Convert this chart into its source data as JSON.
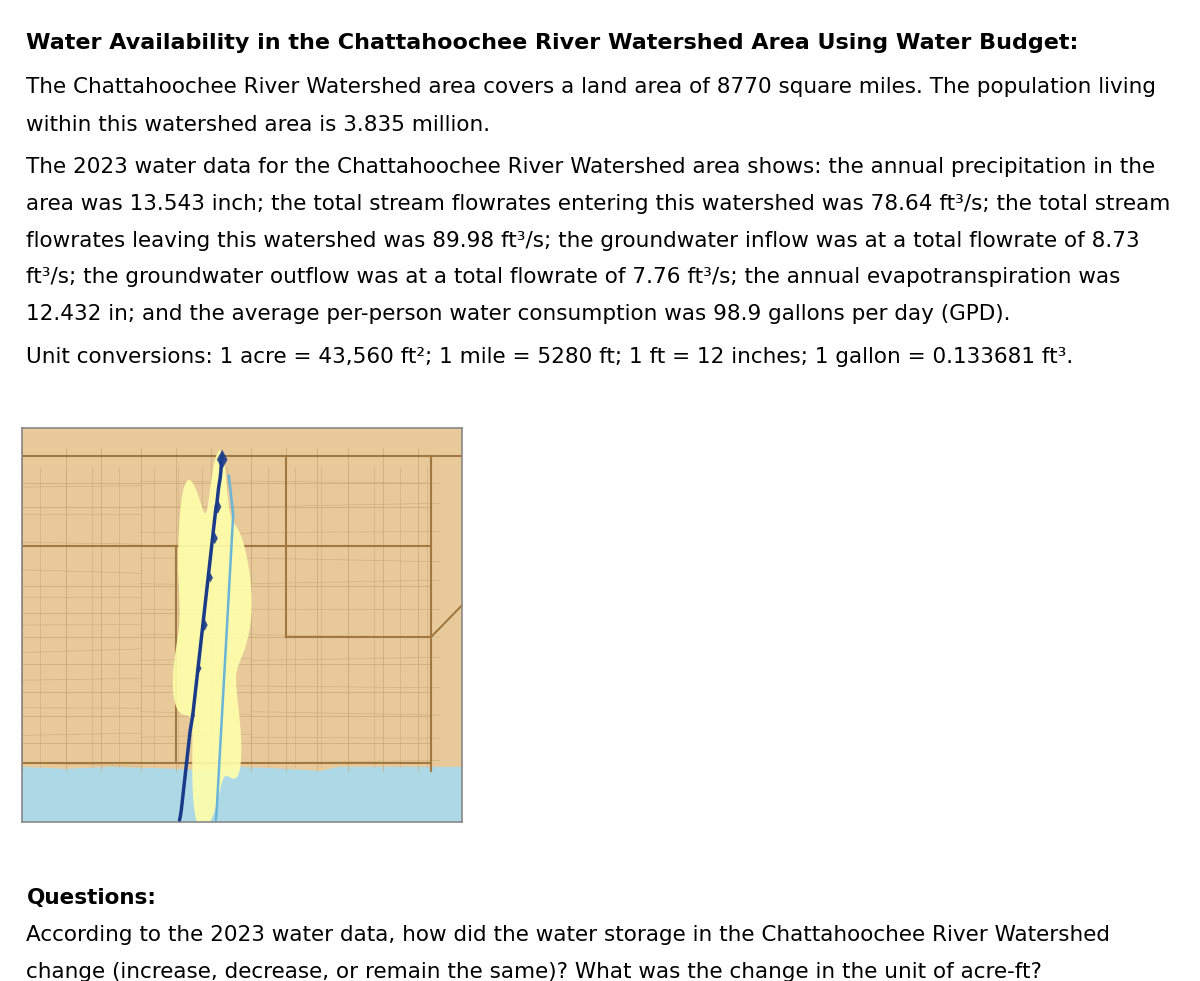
{
  "title": "Water Availability in the Chattahoochee River Watershed Area Using Water Budget:",
  "para1_line1": "The Chattahoochee River Watershed area covers a land area of 8770 square miles. The population living",
  "para1_line2": "within this watershed area is 3.835 million.",
  "para2_lines": [
    "The 2023 water data for the Chattahoochee River Watershed area shows: the annual precipitation in the",
    "area was 13.543 inch; the total stream flowrates entering this watershed was 78.64 ft³/s; the total stream",
    "flowrates leaving this watershed was 89.98 ft³/s; the groundwater inflow was at a total flowrate of 8.73",
    "ft³/s; the groundwater outflow was at a total flowrate of 7.76 ft³/s; the annual evapotranspiration was",
    "12.432 in; and the average per-person water consumption was 98.9 gallons per day (GPD)."
  ],
  "para3": "Unit conversions: 1 acre = 43,560 ft²; 1 mile = 5280 ft; 1 ft = 12 inches; 1 gallon = 0.133681 ft³.",
  "questions_header": "Questions:",
  "q1_line1": "According to the 2023 water data, how did the water storage in the Chattahoochee River Watershed",
  "q1_line2": "change (increase, decrease, or remain the same)? What was the change in the unit of acre-ft?",
  "bg_color": "#ffffff",
  "text_color": "#000000",
  "map_bg": "#e8c99a",
  "map_water": "#add8e6",
  "map_watershed": "#ffffaa",
  "map_river_dark": "#1a3a8a",
  "map_river_light": "#6ab4d8",
  "map_border": "#a07840",
  "map_county": "#c8a878",
  "title_fs": 16,
  "body_fs": 15.5
}
